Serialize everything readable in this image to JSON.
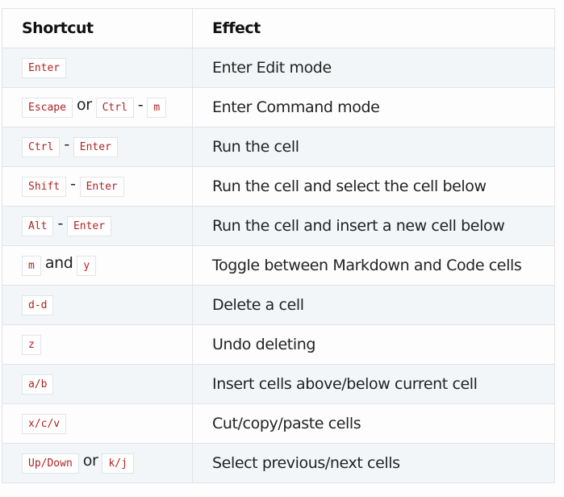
{
  "table": {
    "headers": [
      "Shortcut",
      "Effect"
    ],
    "rows": [
      {
        "shortcut": [
          {
            "key": "Enter"
          }
        ],
        "effect": "Enter Edit mode"
      },
      {
        "shortcut": [
          {
            "key": "Escape"
          },
          {
            "sep": "or"
          },
          {
            "key": "Ctrl"
          },
          {
            "sep": "-"
          },
          {
            "key": "m"
          }
        ],
        "effect": "Enter Command mode"
      },
      {
        "shortcut": [
          {
            "key": "Ctrl"
          },
          {
            "sep": "-"
          },
          {
            "key": "Enter"
          }
        ],
        "effect": "Run the cell"
      },
      {
        "shortcut": [
          {
            "key": "Shift"
          },
          {
            "sep": "-"
          },
          {
            "key": "Enter"
          }
        ],
        "effect": "Run the cell and select the cell below"
      },
      {
        "shortcut": [
          {
            "key": "Alt"
          },
          {
            "sep": "-"
          },
          {
            "key": "Enter"
          }
        ],
        "effect": "Run the cell and insert a new cell below"
      },
      {
        "shortcut": [
          {
            "key": "m"
          },
          {
            "sep": "and"
          },
          {
            "key": "y"
          }
        ],
        "effect": "Toggle between Markdown and Code cells"
      },
      {
        "shortcut": [
          {
            "key": "d-d"
          }
        ],
        "effect": "Delete a cell"
      },
      {
        "shortcut": [
          {
            "key": "z"
          }
        ],
        "effect": "Undo deleting"
      },
      {
        "shortcut": [
          {
            "key": "a/b"
          }
        ],
        "effect": "Insert cells above/below current cell"
      },
      {
        "shortcut": [
          {
            "key": "x/c/v"
          }
        ],
        "effect": "Cut/copy/paste cells"
      },
      {
        "shortcut": [
          {
            "key": "Up/Down"
          },
          {
            "sep": "or"
          },
          {
            "key": "k/j"
          }
        ],
        "effect": "Select previous/next cells"
      }
    ]
  },
  "colors": {
    "key_text": "#b22222",
    "row_shade": "#f3f6f8",
    "border": "#e1e4e6"
  }
}
